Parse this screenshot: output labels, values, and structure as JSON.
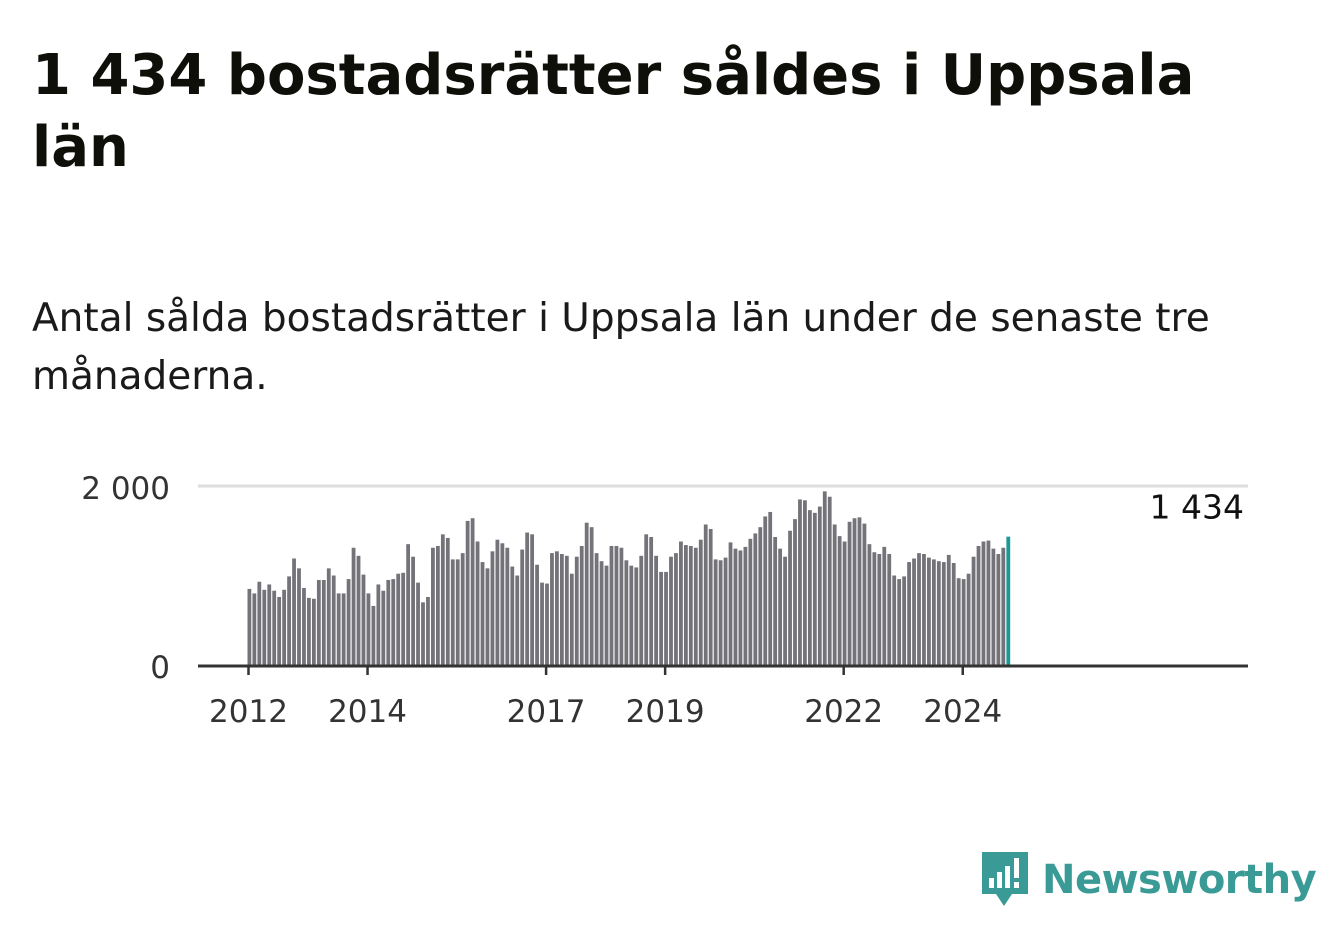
{
  "title": "1 434 bostadsrätter såldes i Uppsala län",
  "subtitle": "Antal sålda bostadsrätter i Uppsala län under de senaste tre månaderna.",
  "brand": {
    "name": "Newsworthy",
    "icon": "newsworthy-logo-icon",
    "color": "#3a9a95"
  },
  "colors": {
    "bar": "#747379",
    "highlight": "#1a9a96",
    "grid": "#dddddd",
    "axis": "#333333"
  },
  "chart_data": {
    "type": "bar",
    "xlabel": "",
    "ylabel": "",
    "ylim": [
      0,
      2000
    ],
    "yticks": [
      {
        "value": 0,
        "label": "0"
      },
      {
        "value": 2000,
        "label": "2 000"
      }
    ],
    "xticks": [
      {
        "year": 2012,
        "label": "2012"
      },
      {
        "year": 2014,
        "label": "2014"
      },
      {
        "year": 2017,
        "label": "2017"
      },
      {
        "year": 2019,
        "label": "2019"
      },
      {
        "year": 2022,
        "label": "2022"
      },
      {
        "year": 2024,
        "label": "2024"
      }
    ],
    "start": "2012-01",
    "end": "2024-09",
    "grid": true,
    "highlight_label": "1 434",
    "values": [
      850,
      800,
      930,
      840,
      900,
      830,
      760,
      840,
      990,
      1190,
      1080,
      860,
      750,
      740,
      950,
      950,
      1080,
      1000,
      800,
      800,
      960,
      1310,
      1220,
      1010,
      800,
      660,
      900,
      830,
      950,
      960,
      1020,
      1030,
      1350,
      1210,
      920,
      700,
      760,
      1310,
      1330,
      1460,
      1420,
      1180,
      1180,
      1250,
      1610,
      1640,
      1380,
      1150,
      1080,
      1270,
      1400,
      1360,
      1310,
      1100,
      1000,
      1290,
      1480,
      1460,
      1120,
      920,
      910,
      1250,
      1270,
      1240,
      1220,
      1020,
      1210,
      1330,
      1590,
      1540,
      1250,
      1160,
      1110,
      1330,
      1330,
      1310,
      1170,
      1110,
      1090,
      1220,
      1460,
      1430,
      1220,
      1040,
      1040,
      1210,
      1250,
      1380,
      1340,
      1330,
      1310,
      1400,
      1570,
      1520,
      1180,
      1170,
      1200,
      1370,
      1300,
      1280,
      1320,
      1410,
      1470,
      1540,
      1660,
      1710,
      1430,
      1300,
      1210,
      1500,
      1630,
      1850,
      1840,
      1730,
      1700,
      1770,
      1940,
      1880,
      1570,
      1440,
      1380,
      1600,
      1640,
      1650,
      1580,
      1350,
      1260,
      1240,
      1320,
      1240,
      1000,
      960,
      990,
      1150,
      1190,
      1250,
      1240,
      1200,
      1180,
      1160,
      1150,
      1230,
      1140,
      970,
      960,
      1020,
      1210,
      1330,
      1380,
      1390,
      1300,
      1240,
      1310,
      1434
    ]
  }
}
